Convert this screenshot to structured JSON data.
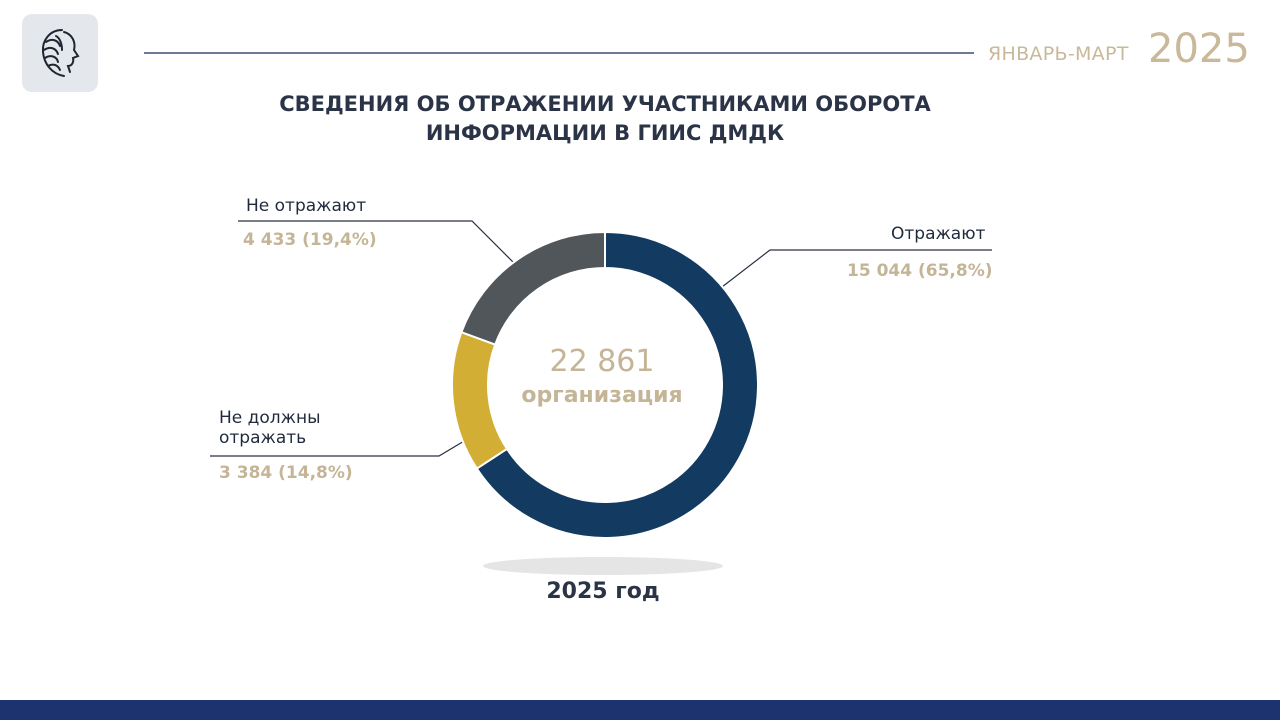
{
  "header": {
    "period": "ЯНВАРЬ-МАРТ",
    "year": "2025",
    "title_line1": "СВЕДЕНИЯ ОБ ОТРАЖЕНИИ УЧАСТНИКАМИ ОБОРОТА",
    "title_line2": "ИНФОРМАЦИИ В ГИИС ДМДК"
  },
  "logo": {
    "icon": "woman-profile-emblem-icon"
  },
  "chart_data": {
    "type": "pie",
    "title": "СВЕДЕНИЯ ОБ ОТРАЖЕНИИ УЧАСТНИКАМИ ОБОРОТА ИНФОРМАЦИИ В ГИИС ДМДК",
    "donut": true,
    "total": 22861,
    "center_label": "22 861",
    "center_unit": "организация",
    "caption": "2025 год",
    "series": [
      {
        "label": "Отражают",
        "value": 15044,
        "percent": 65.8,
        "value_label": "15 044 (65,8%)",
        "color": "#133a60"
      },
      {
        "label": "Не должны отражать",
        "value": 3384,
        "percent": 14.8,
        "value_label": "3 384 (14,8%)",
        "color": "#d2ae35"
      },
      {
        "label": "Не отражают",
        "value": 4433,
        "percent": 19.4,
        "value_label": "4 433 (19,4%)",
        "color": "#50565a"
      }
    ]
  },
  "colors": {
    "accent_gold": "#c4b597",
    "header_year": "#c9b89a",
    "footer_bar": "#1c3370",
    "text_dark": "#2b3447"
  }
}
